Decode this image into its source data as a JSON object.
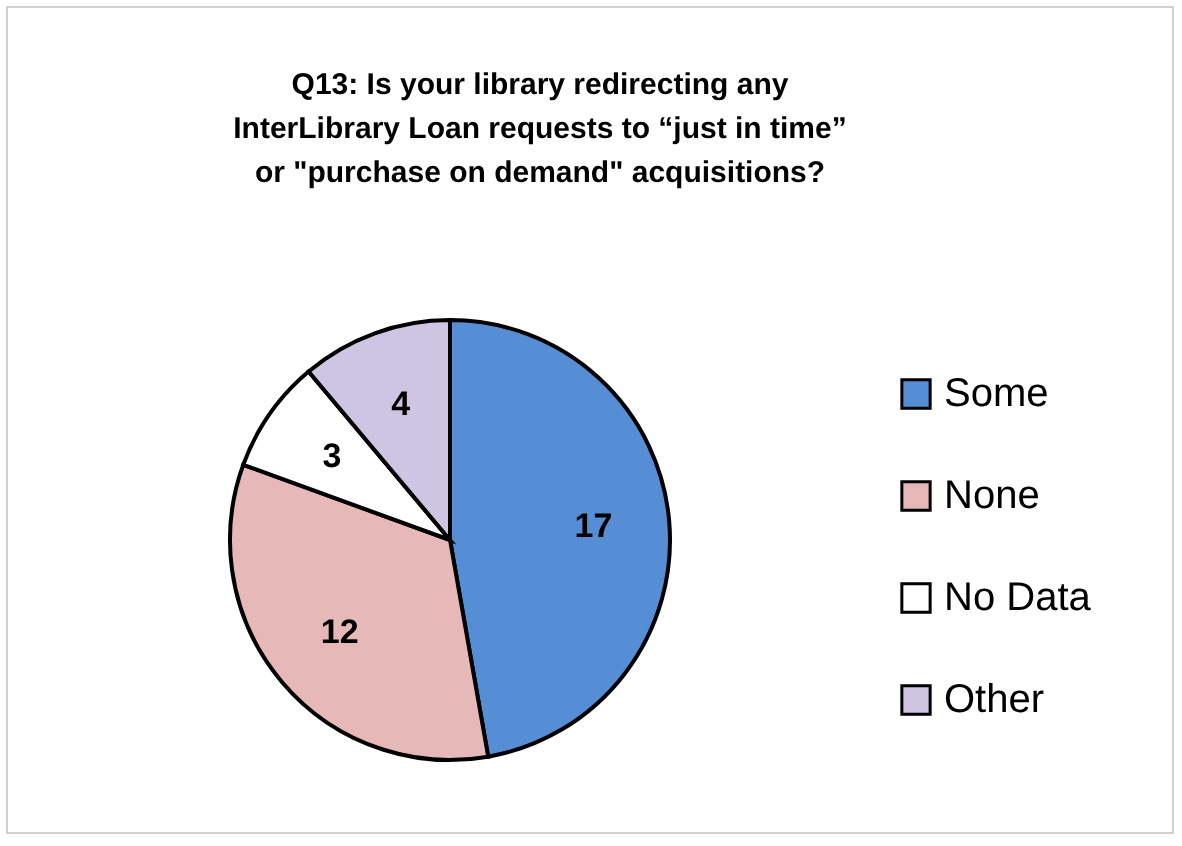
{
  "chart_data": {
    "type": "pie",
    "title": "Q13: Is your library redirecting any\nInterLibrary Loan requests to “just in time”\nor \"purchase on demand\" acquisitions?",
    "categories": [
      "Some",
      "None",
      "No Data",
      "Other"
    ],
    "values": [
      17,
      12,
      3,
      4
    ],
    "colors": [
      "#558ed5",
      "#e6b9b8",
      "#ffffff",
      "#cdc5e2"
    ],
    "data_labels": true,
    "legend": "right"
  }
}
